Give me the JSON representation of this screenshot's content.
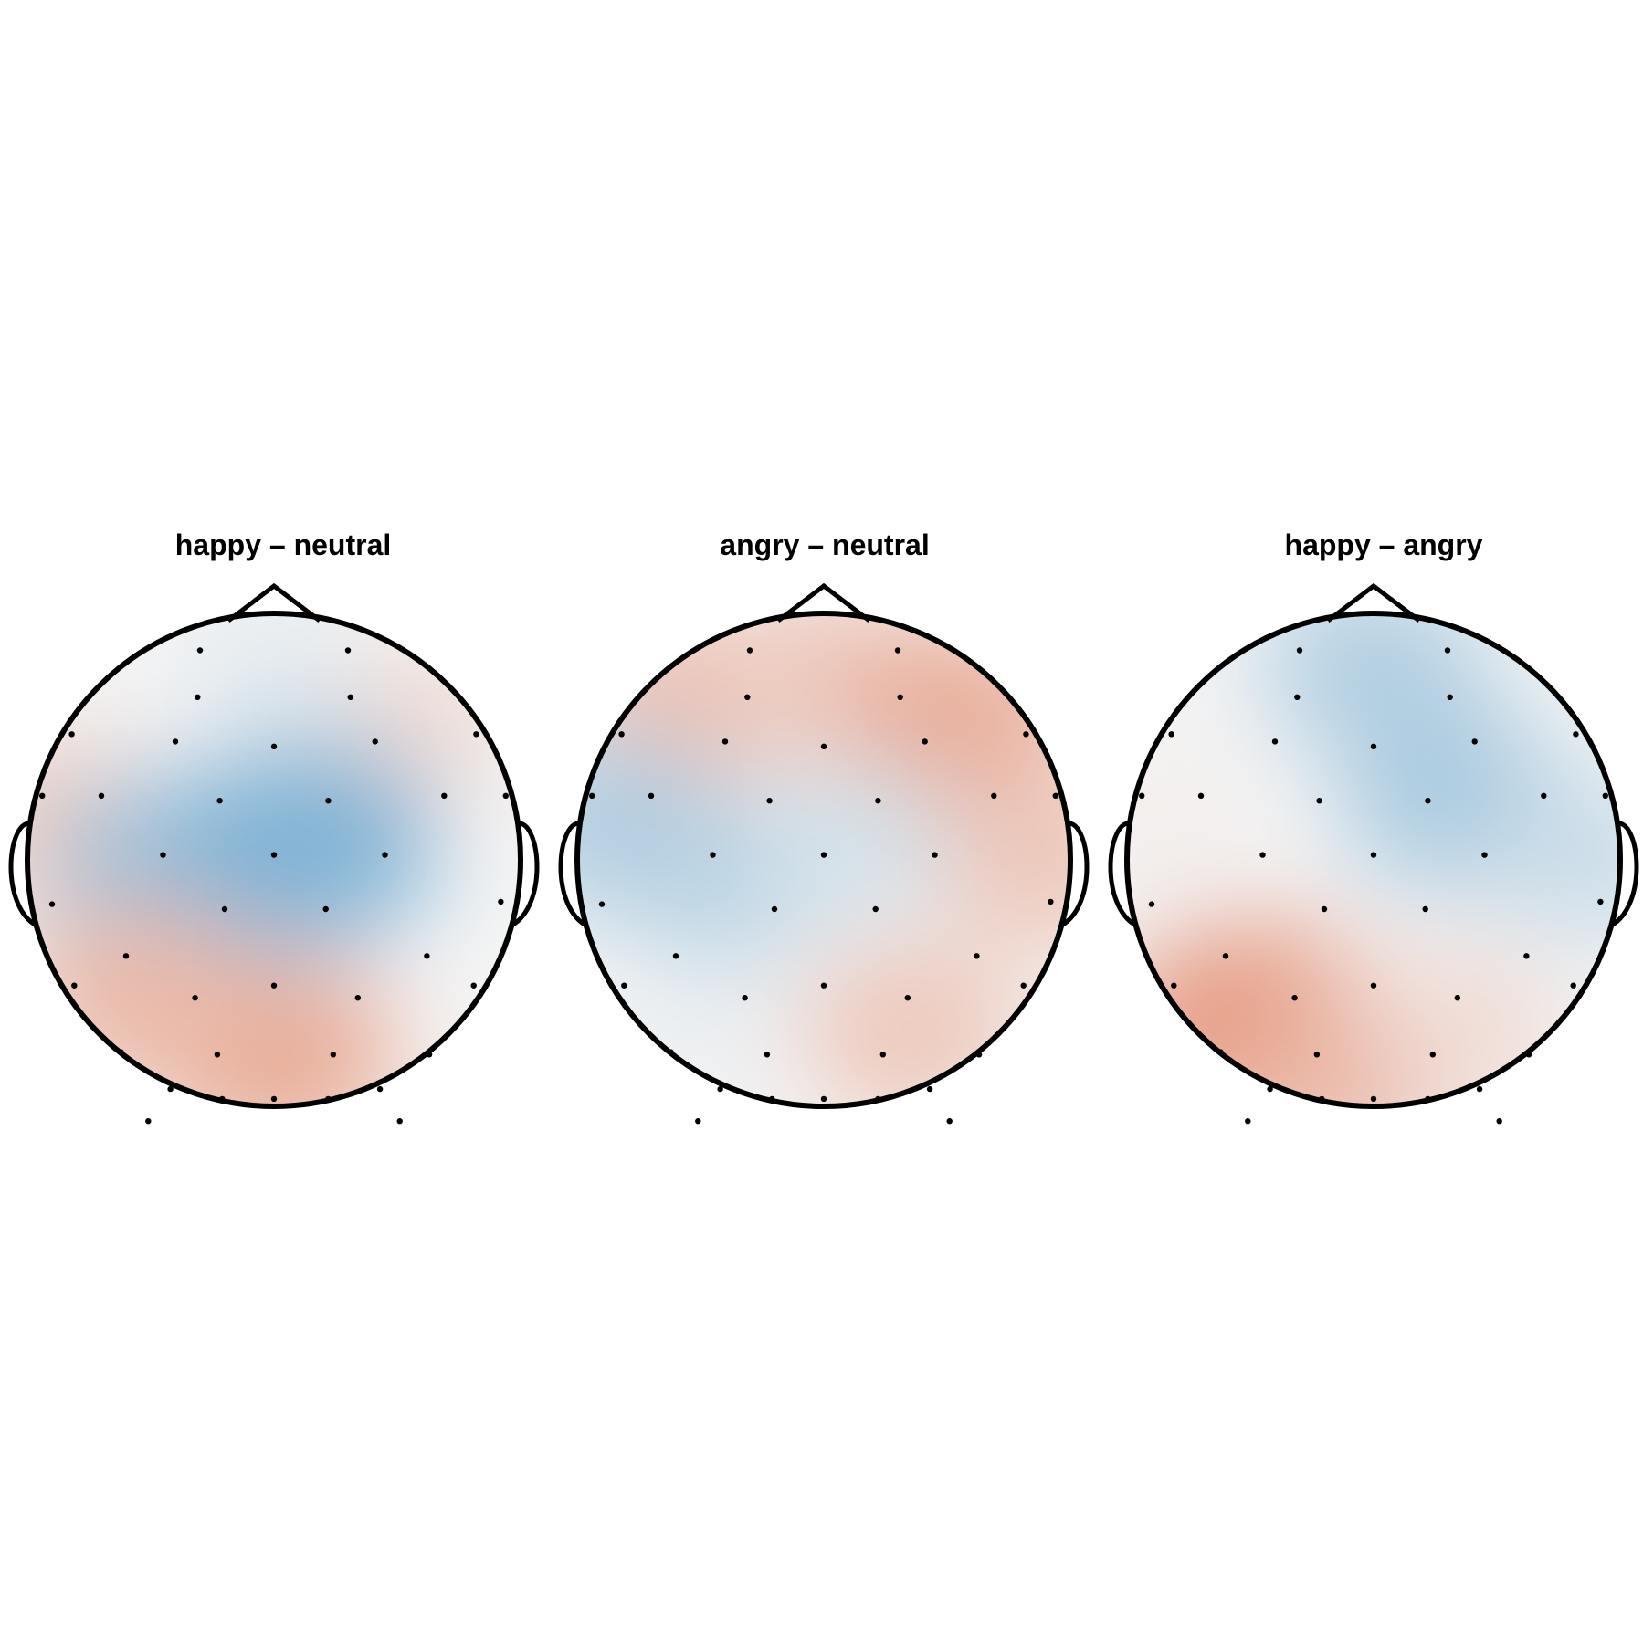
{
  "figure": {
    "colors": {
      "positive": "#e0734e",
      "negative": "#4f98c7",
      "neutral": "#f4f4f4",
      "outline": "#000000",
      "background": "#ffffff"
    }
  },
  "chart_data": {
    "type": "heatmap",
    "subtype": "scalp-topography",
    "colorscale": "diverging blue-white-red",
    "colorbar": "none",
    "panels": [
      {
        "title": "happy – neutral",
        "pattern": [
          {
            "region": "left-temporal",
            "value": 0.3
          },
          {
            "region": "right-frontal",
            "value": 0.2
          },
          {
            "region": "central-left",
            "value": -0.55
          },
          {
            "region": "central-right",
            "value": -0.7
          },
          {
            "region": "frontal-midline",
            "value": -0.1
          },
          {
            "region": "occipital",
            "value": 0.55
          },
          {
            "region": "parietal-left",
            "value": 0.45
          }
        ]
      },
      {
        "title": "angry – neutral",
        "pattern": [
          {
            "region": "left-frontal",
            "value": 0.4
          },
          {
            "region": "frontal-midline",
            "value": 0.3
          },
          {
            "region": "right-frontal",
            "value": 0.55
          },
          {
            "region": "right-temporal",
            "value": 0.35
          },
          {
            "region": "central-left",
            "value": -0.35
          },
          {
            "region": "central-right",
            "value": -0.2
          },
          {
            "region": "left-temporal",
            "value": -0.4
          },
          {
            "region": "occipital-right",
            "value": 0.35
          },
          {
            "region": "occipital-left",
            "value": -0.05
          }
        ]
      },
      {
        "title": "happy – angry",
        "pattern": [
          {
            "region": "frontal-midline",
            "value": -0.4
          },
          {
            "region": "right-central",
            "value": -0.45
          },
          {
            "region": "left-temporal",
            "value": 0.05
          },
          {
            "region": "right-temporal",
            "value": -0.25
          },
          {
            "region": "occipital-left",
            "value": 0.7
          },
          {
            "region": "occipital-midline",
            "value": 0.5
          },
          {
            "region": "occipital-right",
            "value": 0.2
          }
        ]
      }
    ]
  }
}
